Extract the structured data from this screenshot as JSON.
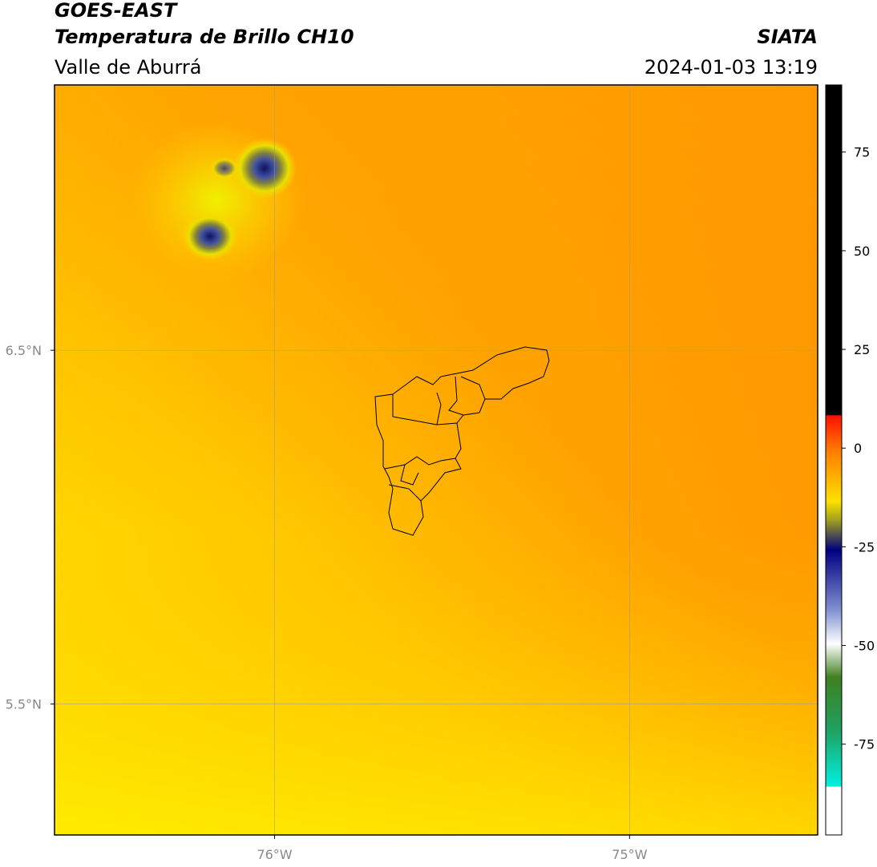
{
  "header": {
    "title": "GOES-EAST",
    "subtitle": "Temperatura de Brillo CH10",
    "region": "Valle de Aburrá",
    "source": "SIATA",
    "datetime": "2024-01-03 13:19"
  },
  "map": {
    "xlim": [
      -76.62,
      -74.47
    ],
    "ylim": [
      5.13,
      7.25
    ],
    "xticks": [
      {
        "value": -76,
        "label": "76°W"
      },
      {
        "value": -75,
        "label": "75°W"
      }
    ],
    "yticks": [
      {
        "value": 6.5,
        "label": "6.5°N"
      },
      {
        "value": 5.5,
        "label": "5.5°N"
      }
    ],
    "grid": true
  },
  "colorbar": {
    "lim": [
      -98,
      92
    ],
    "ticks": [
      75,
      50,
      25,
      0,
      -25,
      -50,
      -75
    ]
  }
}
